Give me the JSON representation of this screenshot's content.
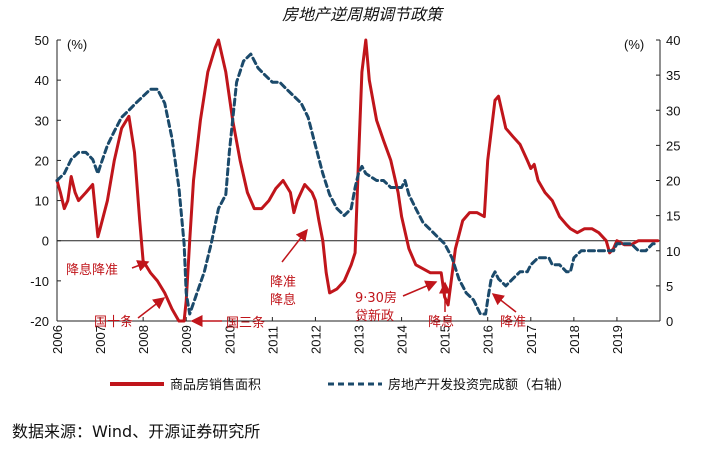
{
  "chart_data": {
    "type": "line",
    "title": "房地产逆周期调节政策",
    "y_unit_left": "(%)",
    "y_unit_right": "(%)",
    "ylim_left": [
      -20,
      50
    ],
    "ylim_right": [
      0,
      40
    ],
    "yticks_left": [
      "50",
      "40",
      "30",
      "20",
      "10",
      "0",
      "-10",
      "-20"
    ],
    "yticks_right": [
      "40",
      "35",
      "30",
      "25",
      "20",
      "15",
      "10",
      "5",
      "0"
    ],
    "x_tick_labels": [
      "2006",
      "2007",
      "2008",
      "2009",
      "2010",
      "2011",
      "2012",
      "2013",
      "2014",
      "2015",
      "2016",
      "2017",
      "2018",
      "2019"
    ],
    "series": [
      {
        "name": "商品房销售面积",
        "axis": "left",
        "color": "#c0151b",
        "points": [
          [
            2006.0,
            15
          ],
          [
            2006.08,
            12
          ],
          [
            2006.17,
            8
          ],
          [
            2006.25,
            10
          ],
          [
            2006.33,
            16
          ],
          [
            2006.42,
            12
          ],
          [
            2006.5,
            10
          ],
          [
            2006.67,
            12
          ],
          [
            2006.83,
            14
          ],
          [
            2006.95,
            1
          ],
          [
            2007.0,
            3
          ],
          [
            2007.17,
            10
          ],
          [
            2007.33,
            20
          ],
          [
            2007.5,
            28
          ],
          [
            2007.67,
            31
          ],
          [
            2007.8,
            22
          ],
          [
            2007.92,
            5
          ],
          [
            2008.0,
            -5
          ],
          [
            2008.17,
            -8
          ],
          [
            2008.33,
            -10
          ],
          [
            2008.5,
            -13
          ],
          [
            2008.67,
            -17
          ],
          [
            2008.83,
            -20
          ],
          [
            2008.95,
            -20
          ],
          [
            2009.0,
            -15
          ],
          [
            2009.08,
            0
          ],
          [
            2009.17,
            15
          ],
          [
            2009.33,
            30
          ],
          [
            2009.5,
            42
          ],
          [
            2009.67,
            48
          ],
          [
            2009.75,
            50
          ],
          [
            2009.92,
            42
          ],
          [
            2010.08,
            30
          ],
          [
            2010.25,
            20
          ],
          [
            2010.42,
            12
          ],
          [
            2010.58,
            8
          ],
          [
            2010.75,
            8
          ],
          [
            2010.92,
            10
          ],
          [
            2011.08,
            13
          ],
          [
            2011.25,
            15
          ],
          [
            2011.42,
            12
          ],
          [
            2011.5,
            7
          ],
          [
            2011.58,
            10
          ],
          [
            2011.75,
            14
          ],
          [
            2011.92,
            12
          ],
          [
            2012.0,
            10
          ],
          [
            2012.08,
            5
          ],
          [
            2012.17,
            0
          ],
          [
            2012.25,
            -8
          ],
          [
            2012.33,
            -13
          ],
          [
            2012.5,
            -12
          ],
          [
            2012.67,
            -10
          ],
          [
            2012.83,
            -6
          ],
          [
            2012.92,
            -3
          ],
          [
            2013.0,
            20
          ],
          [
            2013.08,
            42
          ],
          [
            2013.17,
            50
          ],
          [
            2013.25,
            40
          ],
          [
            2013.42,
            30
          ],
          [
            2013.58,
            25
          ],
          [
            2013.75,
            20
          ],
          [
            2013.92,
            12
          ],
          [
            2014.0,
            6
          ],
          [
            2014.17,
            -2
          ],
          [
            2014.33,
            -6
          ],
          [
            2014.5,
            -7
          ],
          [
            2014.67,
            -8
          ],
          [
            2014.83,
            -8
          ],
          [
            2014.92,
            -8
          ],
          [
            2015.0,
            -14
          ],
          [
            2015.08,
            -16
          ],
          [
            2015.25,
            -2
          ],
          [
            2015.42,
            5
          ],
          [
            2015.58,
            7
          ],
          [
            2015.75,
            7
          ],
          [
            2015.92,
            6
          ],
          [
            2016.0,
            20
          ],
          [
            2016.17,
            35
          ],
          [
            2016.25,
            36
          ],
          [
            2016.42,
            28
          ],
          [
            2016.58,
            26
          ],
          [
            2016.75,
            24
          ],
          [
            2016.92,
            20
          ],
          [
            2017.0,
            18
          ],
          [
            2017.08,
            19
          ],
          [
            2017.17,
            15
          ],
          [
            2017.33,
            12
          ],
          [
            2017.5,
            10
          ],
          [
            2017.67,
            6
          ],
          [
            2017.83,
            4
          ],
          [
            2017.92,
            3
          ],
          [
            2018.08,
            2
          ],
          [
            2018.25,
            3
          ],
          [
            2018.42,
            3
          ],
          [
            2018.58,
            2
          ],
          [
            2018.75,
            0
          ],
          [
            2018.83,
            -3
          ],
          [
            2018.92,
            -2
          ],
          [
            2019.0,
            0
          ],
          [
            2019.17,
            -1
          ],
          [
            2019.33,
            -1
          ],
          [
            2019.5,
            0
          ],
          [
            2019.67,
            0
          ],
          [
            2019.83,
            0
          ],
          [
            2019.95,
            0
          ]
        ]
      },
      {
        "name": "房地产开发投资完成额（右轴）",
        "axis": "right",
        "color": "#1b4a6b",
        "points": [
          [
            2006.0,
            20
          ],
          [
            2006.17,
            21
          ],
          [
            2006.33,
            23
          ],
          [
            2006.5,
            24
          ],
          [
            2006.67,
            24
          ],
          [
            2006.83,
            23
          ],
          [
            2006.95,
            21
          ],
          [
            2007.0,
            22
          ],
          [
            2007.17,
            25
          ],
          [
            2007.33,
            27
          ],
          [
            2007.5,
            29
          ],
          [
            2007.67,
            30
          ],
          [
            2007.83,
            31
          ],
          [
            2008.0,
            32
          ],
          [
            2008.17,
            33
          ],
          [
            2008.33,
            33
          ],
          [
            2008.5,
            31
          ],
          [
            2008.67,
            26
          ],
          [
            2008.83,
            19
          ],
          [
            2008.95,
            11
          ],
          [
            2009.0,
            4
          ],
          [
            2009.08,
            1
          ],
          [
            2009.25,
            4
          ],
          [
            2009.42,
            7
          ],
          [
            2009.58,
            11
          ],
          [
            2009.75,
            16
          ],
          [
            2009.92,
            18
          ],
          [
            2010.0,
            24
          ],
          [
            2010.17,
            34
          ],
          [
            2010.33,
            37
          ],
          [
            2010.5,
            38
          ],
          [
            2010.67,
            36
          ],
          [
            2010.83,
            35
          ],
          [
            2011.0,
            34
          ],
          [
            2011.17,
            34
          ],
          [
            2011.33,
            33
          ],
          [
            2011.5,
            32
          ],
          [
            2011.67,
            31
          ],
          [
            2011.83,
            29
          ],
          [
            2012.0,
            25
          ],
          [
            2012.17,
            21
          ],
          [
            2012.33,
            18
          ],
          [
            2012.5,
            16
          ],
          [
            2012.67,
            15
          ],
          [
            2012.83,
            16
          ],
          [
            2012.92,
            19
          ],
          [
            2013.0,
            21
          ],
          [
            2013.08,
            22
          ],
          [
            2013.17,
            21
          ],
          [
            2013.42,
            20
          ],
          [
            2013.58,
            20
          ],
          [
            2013.75,
            19
          ],
          [
            2013.92,
            19
          ],
          [
            2014.0,
            19
          ],
          [
            2014.08,
            20
          ],
          [
            2014.17,
            18
          ],
          [
            2014.33,
            16
          ],
          [
            2014.5,
            14
          ],
          [
            2014.67,
            13
          ],
          [
            2014.83,
            12
          ],
          [
            2015.0,
            11
          ],
          [
            2015.17,
            9
          ],
          [
            2015.33,
            6
          ],
          [
            2015.5,
            4
          ],
          [
            2015.67,
            3
          ],
          [
            2015.83,
            1
          ],
          [
            2015.95,
            1
          ],
          [
            2016.0,
            3
          ],
          [
            2016.08,
            6
          ],
          [
            2016.17,
            7
          ],
          [
            2016.25,
            6
          ],
          [
            2016.42,
            5
          ],
          [
            2016.58,
            6
          ],
          [
            2016.75,
            7
          ],
          [
            2016.92,
            7
          ],
          [
            2017.0,
            8
          ],
          [
            2017.17,
            9
          ],
          [
            2017.33,
            9
          ],
          [
            2017.42,
            9
          ],
          [
            2017.5,
            8
          ],
          [
            2017.67,
            8
          ],
          [
            2017.83,
            7
          ],
          [
            2017.92,
            7
          ],
          [
            2018.0,
            9
          ],
          [
            2018.17,
            10
          ],
          [
            2018.33,
            10
          ],
          [
            2018.5,
            10
          ],
          [
            2018.67,
            10
          ],
          [
            2018.83,
            10
          ],
          [
            2018.92,
            10
          ],
          [
            2019.0,
            11
          ],
          [
            2019.17,
            11
          ],
          [
            2019.33,
            11
          ],
          [
            2019.5,
            10
          ],
          [
            2019.67,
            10
          ],
          [
            2019.83,
            11
          ],
          [
            2019.95,
            11
          ]
        ]
      }
    ],
    "annotations": [
      {
        "lines": [
          "降息降准"
        ],
        "arrow": "right"
      },
      {
        "lines": [
          "国十条"
        ],
        "arrow": "up-right"
      },
      {
        "lines": [
          "国三条"
        ],
        "arrow": "left"
      },
      {
        "lines": [
          "降准",
          "降息"
        ],
        "arrow": "up-right"
      },
      {
        "lines": [
          "9·30房",
          "贷新政"
        ],
        "arrow": "up-right"
      },
      {
        "lines": [
          "降息"
        ],
        "arrow": "up"
      },
      {
        "lines": [
          "降准"
        ],
        "arrow": "up-left"
      }
    ],
    "grid": false,
    "legend_position": "bottom"
  },
  "source_text": "数据来源：Wind、开源证券研究所"
}
